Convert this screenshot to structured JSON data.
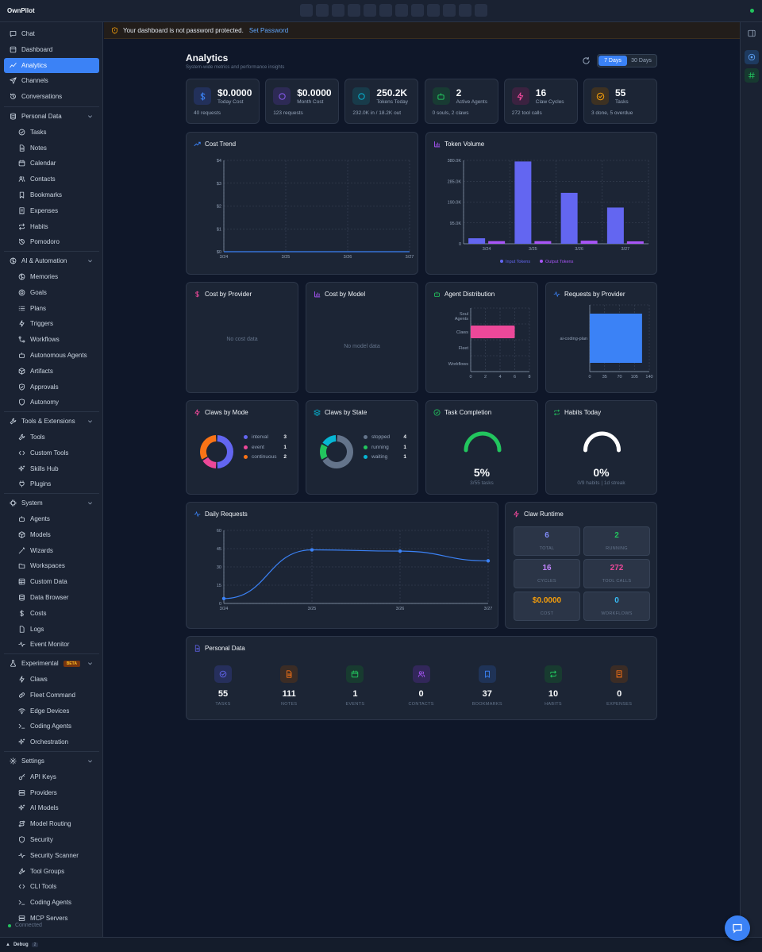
{
  "app": {
    "brand": "OwnPilot",
    "status": "Connected",
    "debug_label": "Debug",
    "debug_count": "2"
  },
  "sidebar": {
    "top": [
      {
        "label": "Chat",
        "icon": "chat-icon"
      },
      {
        "label": "Dashboard",
        "icon": "dashboard-icon"
      },
      {
        "label": "Analytics",
        "icon": "analytics-icon",
        "active": true
      },
      {
        "label": "Channels",
        "icon": "send-icon"
      },
      {
        "label": "Conversations",
        "icon": "history-icon"
      }
    ],
    "sections": [
      {
        "label": "Personal Data",
        "icon": "database-icon",
        "items": [
          "Tasks",
          "Notes",
          "Calendar",
          "Contacts",
          "Bookmarks",
          "Expenses",
          "Habits",
          "Pomodoro"
        ]
      },
      {
        "label": "AI & Automation",
        "icon": "brain-icon",
        "items": [
          "Memories",
          "Goals",
          "Plans",
          "Triggers",
          "Workflows",
          "Autonomous Agents",
          "Artifacts",
          "Approvals",
          "Autonomy"
        ]
      },
      {
        "label": "Tools & Extensions",
        "icon": "wrench-icon",
        "items": [
          "Tools",
          "Custom Tools",
          "Skills Hub",
          "Plugins"
        ]
      },
      {
        "label": "System",
        "icon": "cpu-icon",
        "items": [
          "Agents",
          "Models",
          "Wizards",
          "Workspaces",
          "Custom Data",
          "Data Browser",
          "Costs",
          "Logs",
          "Event Monitor"
        ]
      },
      {
        "label": "Experimental",
        "icon": "flask-icon",
        "badge": "BETA",
        "items": [
          "Claws",
          "Fleet Command",
          "Edge Devices",
          "Coding Agents",
          "Orchestration"
        ]
      },
      {
        "label": "Settings",
        "icon": "gear-icon",
        "items": [
          "API Keys",
          "Providers",
          "AI Models",
          "Model Routing",
          "Security",
          "Security Scanner",
          "Tool Groups",
          "CLI Tools",
          "Coding Agents",
          "MCP Servers"
        ]
      }
    ]
  },
  "warning": {
    "text": "Your dashboard is not password protected.",
    "link": "Set Password"
  },
  "page": {
    "title": "Analytics",
    "subtitle": "System-wide metrics and performance insights",
    "range": [
      "7 Days",
      "30 Days"
    ],
    "range_selected": "7 Days"
  },
  "stats": [
    {
      "value": "$0.0000",
      "label": "Today Cost",
      "note": "40 requests",
      "color": "#3b82f6",
      "bg": "#22305a",
      "icon": "dollar-icon"
    },
    {
      "value": "$0.0000",
      "label": "Month Cost",
      "note": "123 requests",
      "color": "#8b5cf6",
      "bg": "#2d2a55",
      "icon": "trending-up-icon"
    },
    {
      "value": "250.2K",
      "label": "Tokens Today",
      "note": "232.0K in / 18.2K out",
      "color": "#06b6d4",
      "bg": "#183b4a",
      "icon": "message-icon"
    },
    {
      "value": "2",
      "label": "Active Agents",
      "note": "0 souls, 2 claws",
      "color": "#22c55e",
      "bg": "#183b33",
      "icon": "bot-icon"
    },
    {
      "value": "16",
      "label": "Claw Cycles",
      "note": "272 tool calls",
      "color": "#ec4899",
      "bg": "#3b2240",
      "icon": "zap-icon"
    },
    {
      "value": "55",
      "label": "Tasks",
      "note": "3 done, 5 overdue",
      "color": "#f59e0b",
      "bg": "#3d3122",
      "icon": "check-circle-icon"
    }
  ],
  "charts": {
    "cost_trend": {
      "title": "Cost Trend"
    },
    "token_volume": {
      "title": "Token Volume"
    },
    "cost_by_provider": {
      "title": "Cost by Provider",
      "empty": "No cost data"
    },
    "cost_by_model": {
      "title": "Cost by Model",
      "empty": "No model data"
    },
    "agent_distribution": {
      "title": "Agent Distribution"
    },
    "requests_by_provider": {
      "title": "Requests by Provider"
    },
    "claws_by_mode": {
      "title": "Claws by Mode"
    },
    "claws_by_state": {
      "title": "Claws by State"
    },
    "task_completion": {
      "title": "Task Completion",
      "value": "5%",
      "note": "3/55 tasks"
    },
    "habits_today": {
      "title": "Habits Today",
      "value": "0%",
      "note": "0/9 habits | 1d streak"
    },
    "daily_requests": {
      "title": "Daily Requests"
    }
  },
  "chart_data": [
    {
      "id": "cost_trend",
      "type": "line",
      "x": [
        "3/24",
        "3/25",
        "3/26",
        "3/27"
      ],
      "series": [
        {
          "values": [
            0,
            0,
            0,
            0
          ],
          "color": "#3b82f6"
        }
      ],
      "yticks": [
        "$0",
        "$1",
        "$2",
        "$3",
        "$4"
      ],
      "ylim": [
        0,
        4
      ],
      "grid": true
    },
    {
      "id": "token_volume",
      "type": "bar",
      "categories": [
        "3/24",
        "3/25",
        "3/26",
        "3/27"
      ],
      "series": [
        {
          "name": "Input Tokens",
          "values": [
            25000,
            375000,
            232000,
            165000
          ],
          "color": "#6366f1"
        },
        {
          "name": "Output Tokens",
          "values": [
            12000,
            12000,
            14000,
            11000
          ],
          "color": "#a855f7"
        }
      ],
      "yticks": [
        "0",
        "95.0K",
        "190.0K",
        "285.0K",
        "380.0K"
      ],
      "ylim": [
        0,
        380000
      ],
      "grid": true,
      "legend": "bottom"
    },
    {
      "id": "agent_distribution",
      "type": "bar",
      "orientation": "horizontal",
      "categories": [
        "Soul Agents",
        "Claws",
        "Fleet",
        "Workflows"
      ],
      "values": [
        0,
        6,
        0,
        0
      ],
      "xticks": [
        "0",
        "2",
        "4",
        "6",
        "8"
      ],
      "xlim": [
        0,
        8
      ],
      "color": "#ec4899"
    },
    {
      "id": "requests_by_provider",
      "type": "bar",
      "orientation": "horizontal",
      "categories": [
        "ai-coding-plan"
      ],
      "values": [
        123
      ],
      "xticks": [
        "0",
        "35",
        "70",
        "105",
        "140"
      ],
      "xlim": [
        0,
        140
      ],
      "color": "#3b82f6"
    },
    {
      "id": "claws_by_mode",
      "type": "pie",
      "donut": true,
      "slices": [
        {
          "label": "interval",
          "value": 3,
          "color": "#6366f1"
        },
        {
          "label": "event",
          "value": 1,
          "color": "#ec4899"
        },
        {
          "label": "continuous",
          "value": 2,
          "color": "#f97316"
        }
      ]
    },
    {
      "id": "claws_by_state",
      "type": "pie",
      "donut": true,
      "slices": [
        {
          "label": "stopped",
          "value": 4,
          "color": "#64748b"
        },
        {
          "label": "running",
          "value": 1,
          "color": "#22c55e"
        },
        {
          "label": "waiting",
          "value": 1,
          "color": "#06b6d4"
        }
      ]
    },
    {
      "id": "task_completion",
      "type": "gauge",
      "value": 5,
      "max": 100,
      "color": "#22c55e"
    },
    {
      "id": "habits_today",
      "type": "gauge",
      "value": 0,
      "max": 100,
      "color": "#ffffff"
    },
    {
      "id": "daily_requests",
      "type": "line",
      "x": [
        "3/24",
        "3/25",
        "3/26",
        "3/27"
      ],
      "series": [
        {
          "values": [
            4,
            44,
            43,
            35
          ],
          "color": "#3b82f6"
        }
      ],
      "yticks": [
        "0",
        "15",
        "30",
        "45",
        "60"
      ],
      "ylim": [
        0,
        60
      ],
      "grid": true
    }
  ],
  "claw_runtime": {
    "title": "Claw Runtime",
    "tiles": [
      {
        "value": "6",
        "label": "TOTAL",
        "color": "#818cf8"
      },
      {
        "value": "2",
        "label": "RUNNING",
        "color": "#22c55e"
      },
      {
        "value": "16",
        "label": "CYCLES",
        "color": "#c084fc"
      },
      {
        "value": "272",
        "label": "TOOL CALLS",
        "color": "#ec4899"
      },
      {
        "value": "$0.0000",
        "label": "COST",
        "color": "#f59e0b"
      },
      {
        "value": "0",
        "label": "WORKFLOWS",
        "color": "#38bdf8"
      }
    ]
  },
  "personal_data": {
    "title": "Personal Data",
    "items": [
      {
        "value": "55",
        "label": "TASKS",
        "color": "#6366f1",
        "bg": "#262f5c",
        "icon": "check-circle-icon"
      },
      {
        "value": "111",
        "label": "NOTES",
        "color": "#f97316",
        "bg": "#3b2c25",
        "icon": "note-icon"
      },
      {
        "value": "1",
        "label": "EVENTS",
        "color": "#22c55e",
        "bg": "#183b30",
        "icon": "calendar-icon"
      },
      {
        "value": "0",
        "label": "CONTACTS",
        "color": "#a855f7",
        "bg": "#32275a",
        "icon": "users-icon"
      },
      {
        "value": "37",
        "label": "BOOKMARKS",
        "color": "#3b82f6",
        "bg": "#1f3357",
        "icon": "bookmark-icon"
      },
      {
        "value": "10",
        "label": "HABITS",
        "color": "#22c55e",
        "bg": "#183b30",
        "icon": "repeat-icon"
      },
      {
        "value": "0",
        "label": "EXPENSES",
        "color": "#f97316",
        "bg": "#3b2c25",
        "icon": "receipt-icon"
      }
    ]
  }
}
